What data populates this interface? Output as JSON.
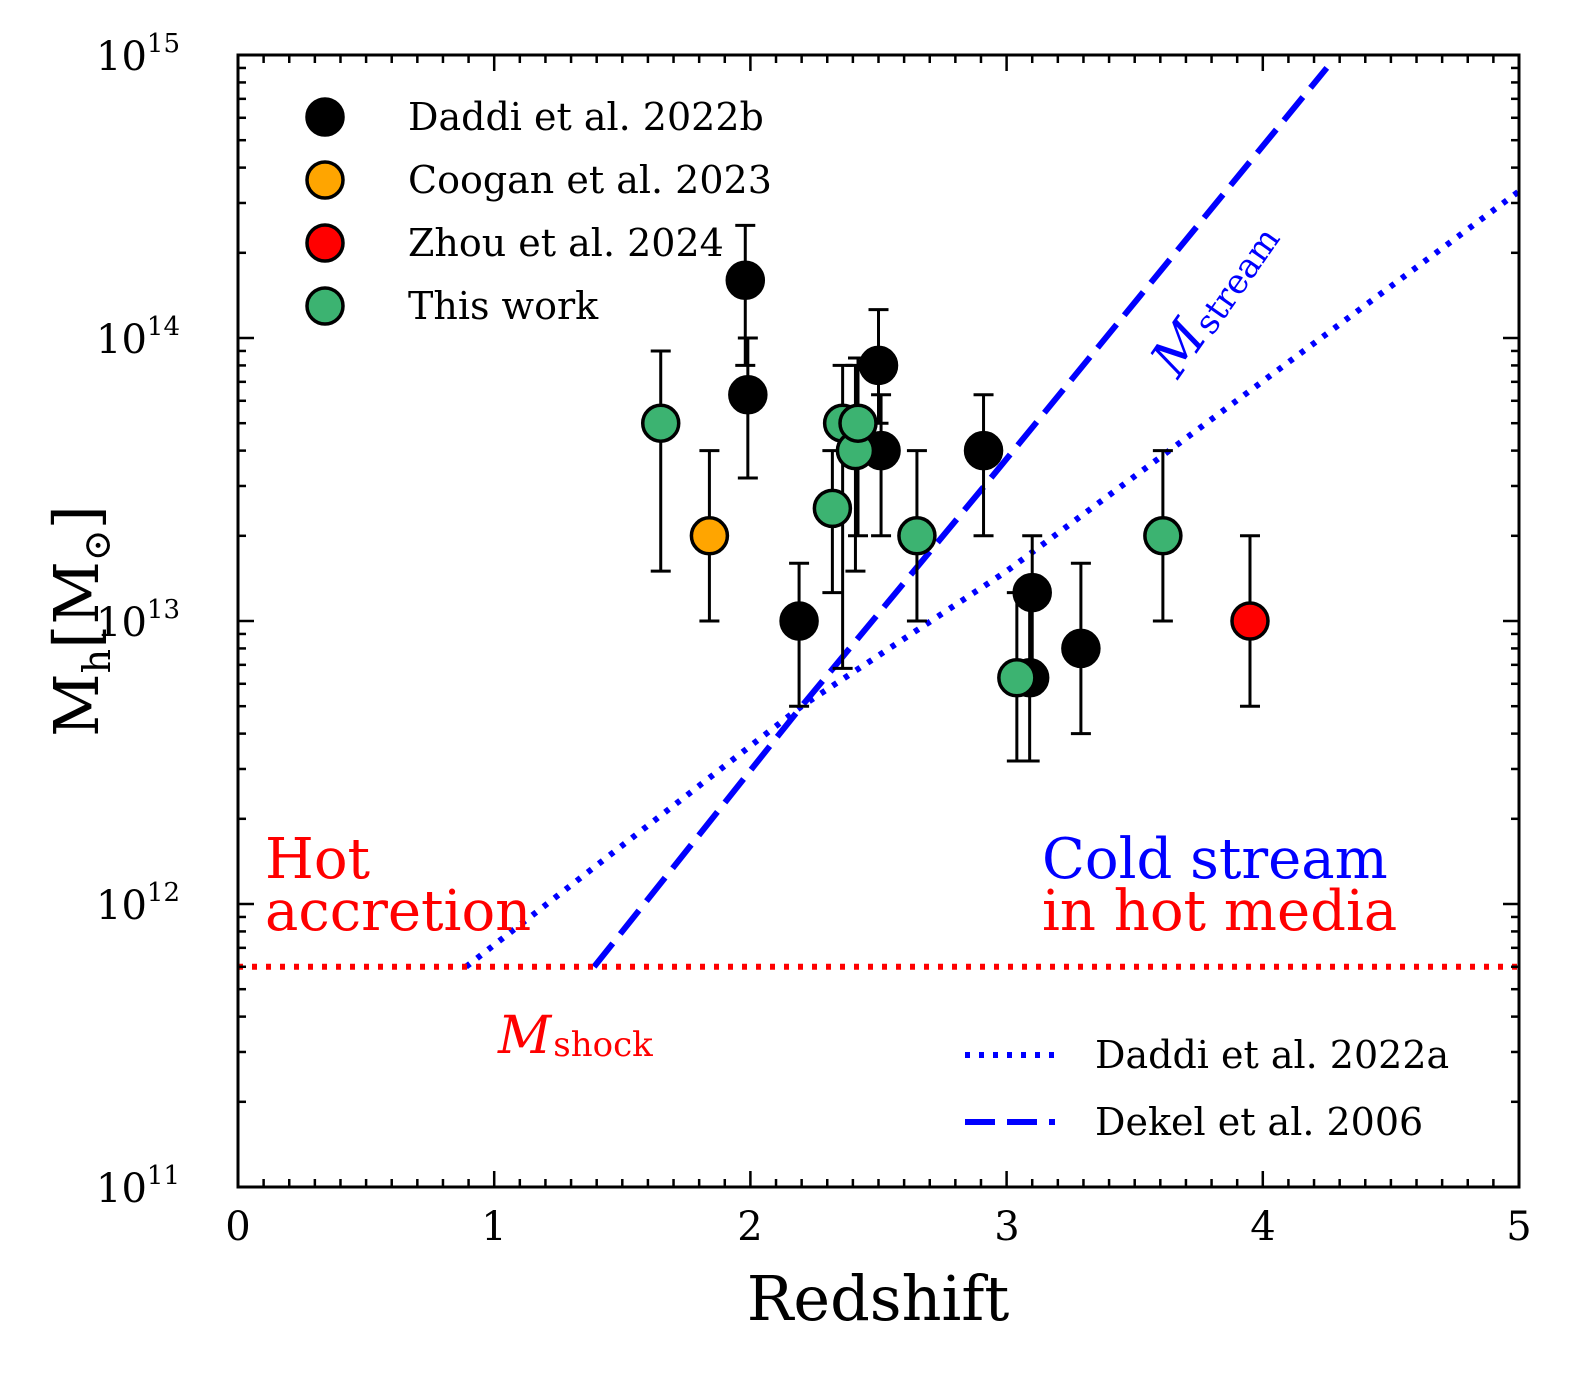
{
  "chart_data": {
    "type": "scatter",
    "xlabel": "Redshift",
    "ylabel": "M_h [M_⊙]",
    "ylabel_main": "M",
    "ylabel_sub": "h",
    "ylabel_unit": "[M",
    "ylabel_sun": "⊙",
    "ylabel_close": "]",
    "xlim": [
      0,
      5
    ],
    "ylim_log10": [
      11,
      15
    ],
    "y_scale": "log",
    "x_ticks": [
      0,
      1,
      2,
      3,
      4,
      5
    ],
    "x_tick_labels": [
      "0",
      "1",
      "2",
      "3",
      "4",
      "5"
    ],
    "y_ticks_exp": [
      11,
      12,
      13,
      14,
      15
    ],
    "y_tick_base": "10",
    "y_tick_exps": [
      "11",
      "12",
      "13",
      "14",
      "15"
    ],
    "legend_location": "top-left",
    "series": [
      {
        "name": "Daddi et al. 2022b",
        "color": "#000000",
        "points": [
          {
            "z": 1.98,
            "m": 160000000000000.0,
            "lo": 80000000000000.0,
            "hi": 250000000000000.0
          },
          {
            "z": 1.99,
            "m": 63000000000000.0,
            "lo": 32000000000000.0,
            "hi": 100000000000000.0
          },
          {
            "z": 2.19,
            "m": 10000000000000.0,
            "lo": 5000000000000.0,
            "hi": 16000000000000.0
          },
          {
            "z": 2.5,
            "m": 80000000000000.0,
            "lo": 50000000000000.0,
            "hi": 126000000000000.0
          },
          {
            "z": 2.51,
            "m": 40000000000000.0,
            "lo": 20000000000000.0,
            "hi": 63000000000000.0
          },
          {
            "z": 2.91,
            "m": 40000000000000.0,
            "lo": 20000000000000.0,
            "hi": 63000000000000.0
          },
          {
            "z": 3.09,
            "m": 6300000000000.0,
            "lo": 3200000000000.0,
            "hi": 12600000000000.0
          },
          {
            "z": 3.1,
            "m": 12600000000000.0,
            "lo": 6300000000000.0,
            "hi": 20000000000000.0
          },
          {
            "z": 3.29,
            "m": 8000000000000.0,
            "lo": 4000000000000.0,
            "hi": 16000000000000.0
          }
        ]
      },
      {
        "name": "Coogan et al. 2023",
        "color": "#FFA500",
        "points": [
          {
            "z": 1.84,
            "m": 20000000000000.0,
            "lo": 10000000000000.0,
            "hi": 40000000000000.0
          }
        ]
      },
      {
        "name": "Zhou et al. 2024",
        "color": "#FF0000",
        "points": [
          {
            "z": 3.95,
            "m": 10000000000000.0,
            "lo": 5000000000000.0,
            "hi": 20000000000000.0
          }
        ]
      },
      {
        "name": "This work",
        "color": "#3CB371",
        "points": [
          {
            "z": 1.65,
            "m": 50000000000000.0,
            "lo": 15000000000000.0,
            "hi": 90000000000000.0
          },
          {
            "z": 2.32,
            "m": 25000000000000.0,
            "lo": 12600000000000.0,
            "hi": 40000000000000.0
          },
          {
            "z": 2.36,
            "m": 50000000000000.0,
            "lo": 6800000000000.0,
            "hi": 80000000000000.0
          },
          {
            "z": 2.41,
            "m": 40000000000000.0,
            "lo": 15000000000000.0,
            "hi": 80000000000000.0
          },
          {
            "z": 2.42,
            "m": 50000000000000.0,
            "lo": 20000000000000.0,
            "hi": 85000000000000.0
          },
          {
            "z": 2.65,
            "m": 20000000000000.0,
            "lo": 10000000000000.0,
            "hi": 40000000000000.0
          },
          {
            "z": 3.04,
            "m": 6300000000000.0,
            "lo": 3200000000000.0,
            "hi": 12600000000000.0
          },
          {
            "z": 3.61,
            "m": 20000000000000.0,
            "lo": 10000000000000.0,
            "hi": 40000000000000.0
          }
        ]
      }
    ],
    "lines": [
      {
        "name": "Daddi et al. 2022a",
        "style": "dotted",
        "color": "#0000FF",
        "points": [
          [
            0.89,
            600000000000.0
          ],
          [
            2.2,
            5000000000000.0
          ],
          [
            3.0,
            15000000000000.0
          ],
          [
            5.0,
            330000000000000.0
          ]
        ]
      },
      {
        "name": "Dekel et al. 2006",
        "style": "dashed",
        "color": "#0000FF",
        "points": [
          [
            1.39,
            600000000000.0
          ],
          [
            2.2,
            5000000000000.0
          ],
          [
            2.9,
            29000000000000.0
          ],
          [
            4.25,
            900000000000000.0
          ]
        ]
      },
      {
        "name": "M_shock",
        "style": "dotted",
        "color": "#FF0000",
        "points": [
          [
            0.0,
            600000000000.0
          ],
          [
            5.0,
            600000000000.0
          ]
        ]
      }
    ],
    "annotations": {
      "hot_line1": "Hot",
      "hot_line2": "accretion",
      "cold_line1": "Cold stream",
      "cold_line2": "in hot media",
      "mshock_main": "M",
      "mshock_sub": "shock",
      "mstream_main": "M",
      "mstream_sub": "stream"
    },
    "colors": {
      "hot_label": "#FF0000",
      "cold_line1": "#0000FF",
      "cold_line2": "#FF0000",
      "model_lines": "#0000FF",
      "shock_line": "#FF0000"
    }
  }
}
